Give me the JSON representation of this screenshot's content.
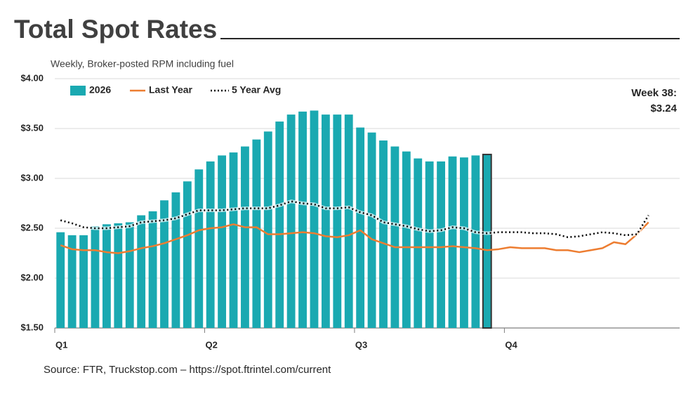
{
  "chart_data": {
    "type": "bar-line",
    "title": "Total Spot Rates",
    "subtitle": "Weekly, Broker-posted RPM including fuel",
    "source": "Source: FTR, Truckstop.com – https://spot.ftrintel.com/current",
    "annotation": [
      "Week 38:",
      "$3.24"
    ],
    "highlight_x": 38,
    "x": [
      1,
      2,
      3,
      4,
      5,
      6,
      7,
      8,
      9,
      10,
      11,
      12,
      13,
      14,
      15,
      16,
      17,
      18,
      19,
      20,
      21,
      22,
      23,
      24,
      25,
      26,
      27,
      28,
      29,
      30,
      31,
      32,
      33,
      34,
      35,
      36,
      37,
      38,
      39,
      40,
      41,
      42,
      43,
      44,
      45,
      46,
      47,
      48,
      49,
      50,
      51,
      52
    ],
    "xlim": [
      0.5,
      54.7
    ],
    "xticks": [
      {
        "value": 0.5,
        "label": "Q1"
      },
      {
        "value": 13.5,
        "label": "Q2"
      },
      {
        "value": 26.5,
        "label": "Q3"
      },
      {
        "value": 39.5,
        "label": "Q4"
      }
    ],
    "ylim": [
      1.5,
      4.0
    ],
    "yticks": [
      {
        "value": 1.5,
        "label": "$1.50"
      },
      {
        "value": 2.0,
        "label": "$2.00"
      },
      {
        "value": 2.5,
        "label": "$2.50"
      },
      {
        "value": 3.0,
        "label": "$3.00"
      },
      {
        "value": 3.5,
        "label": "$3.50"
      },
      {
        "value": 4.0,
        "label": "$4.00"
      }
    ],
    "grid": true,
    "series": [
      {
        "name": "2026",
        "kind": "bar",
        "color": "#1aa9b1",
        "values": [
          2.46,
          2.43,
          2.43,
          2.52,
          2.54,
          2.55,
          2.56,
          2.63,
          2.67,
          2.78,
          2.86,
          2.97,
          3.09,
          3.17,
          3.23,
          3.26,
          3.32,
          3.39,
          3.47,
          3.57,
          3.64,
          3.67,
          3.68,
          3.64,
          3.64,
          3.64,
          3.51,
          3.46,
          3.38,
          3.32,
          3.27,
          3.2,
          3.17,
          3.17,
          3.22,
          3.21,
          3.23,
          3.24,
          null,
          null,
          null,
          null,
          null,
          null,
          null,
          null,
          null,
          null,
          null,
          null,
          null,
          null
        ]
      },
      {
        "name": "Last Year",
        "kind": "line",
        "color": "#ed7d31",
        "values": [
          2.33,
          2.29,
          2.28,
          2.28,
          2.26,
          2.25,
          2.27,
          2.3,
          2.32,
          2.35,
          2.39,
          2.43,
          2.48,
          2.5,
          2.51,
          2.54,
          2.51,
          2.51,
          2.44,
          2.44,
          2.45,
          2.46,
          2.45,
          2.42,
          2.41,
          2.43,
          2.48,
          2.39,
          2.35,
          2.31,
          2.31,
          2.31,
          2.31,
          2.31,
          2.32,
          2.31,
          2.3,
          2.28,
          2.29,
          2.31,
          2.3,
          2.3,
          2.3,
          2.28,
          2.28,
          2.26,
          2.28,
          2.3,
          2.36,
          2.34,
          2.44,
          2.56
        ]
      },
      {
        "name": "5 Year Avg",
        "kind": "dotted",
        "color": "#000000",
        "values": [
          2.58,
          2.55,
          2.51,
          2.5,
          2.5,
          2.51,
          2.52,
          2.56,
          2.57,
          2.58,
          2.6,
          2.64,
          2.68,
          2.68,
          2.68,
          2.69,
          2.7,
          2.7,
          2.7,
          2.73,
          2.77,
          2.75,
          2.74,
          2.7,
          2.7,
          2.71,
          2.66,
          2.63,
          2.56,
          2.54,
          2.52,
          2.49,
          2.47,
          2.48,
          2.51,
          2.5,
          2.46,
          2.45,
          2.46,
          2.46,
          2.46,
          2.45,
          2.45,
          2.44,
          2.41,
          2.42,
          2.44,
          2.46,
          2.45,
          2.43,
          2.44,
          2.63
        ]
      }
    ]
  }
}
